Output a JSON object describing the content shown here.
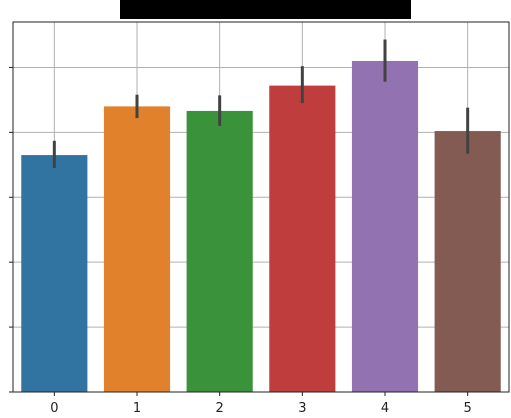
{
  "chart_data": {
    "type": "bar",
    "title": "",
    "xlabel": "",
    "ylabel": "",
    "categories": [
      "0",
      "1",
      "2",
      "3",
      "4",
      "5"
    ],
    "values": [
      3.65,
      4.4,
      4.33,
      4.72,
      5.1,
      4.02
    ],
    "error_low": [
      3.45,
      4.22,
      4.1,
      4.45,
      4.78,
      3.67
    ],
    "error_high": [
      3.87,
      4.58,
      4.57,
      5.02,
      5.43,
      4.38
    ],
    "colors": [
      "#3274a1",
      "#e1812c",
      "#3a923a",
      "#c03d3e",
      "#9372b2",
      "#845b53"
    ],
    "error_color": "#424242",
    "ylim": [
      0,
      5.7
    ],
    "y_ticks": [
      0,
      1,
      2,
      3,
      4,
      5
    ],
    "grid": true
  }
}
